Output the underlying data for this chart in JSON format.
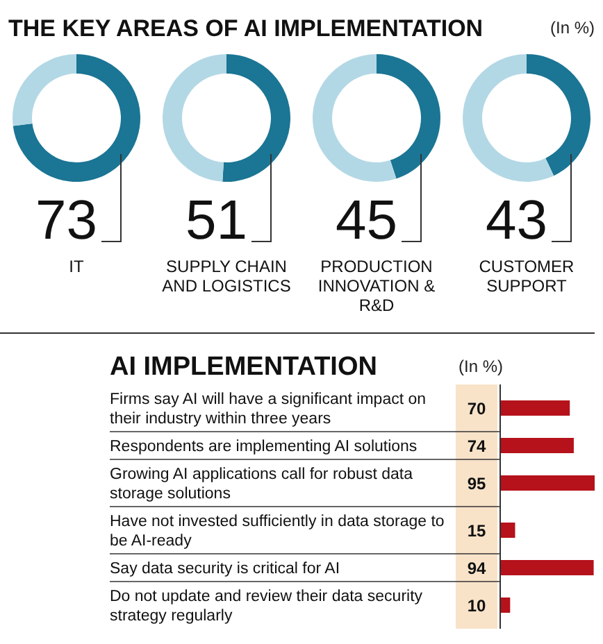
{
  "chart_data": [
    {
      "type": "donut",
      "title": "THE KEY AREAS OF AI IMPLEMENTATION",
      "annotations": [
        "(In %)"
      ],
      "categories": [
        "IT",
        null
      ],
      "values": [
        73,
        27
      ],
      "colors": [
        "#1b7594",
        "#b3d8e5"
      ],
      "value_labels": [
        "73",
        null
      ]
    },
    {
      "type": "donut",
      "categories": [
        "SUPPLY CHAIN AND LOGISTICS",
        null
      ],
      "values": [
        51,
        49
      ],
      "colors": [
        "#1b7594",
        "#b3d8e5"
      ],
      "value_labels": [
        "51",
        null
      ]
    },
    {
      "type": "donut",
      "categories": [
        "PRODUCTION INNOVATION & R&D",
        null
      ],
      "values": [
        45,
        55
      ],
      "colors": [
        "#1b7594",
        "#b3d8e5"
      ],
      "value_labels": [
        "45",
        null
      ]
    },
    {
      "type": "donut",
      "categories": [
        "CUSTOMER SUPPORT",
        null
      ],
      "values": [
        43,
        57
      ],
      "colors": [
        "#1b7594",
        "#b3d8e5"
      ],
      "value_labels": [
        "43",
        null
      ]
    },
    {
      "type": "bar",
      "orientation": "horizontal",
      "title": "AI IMPLEMENTATION",
      "annotations": [
        "(In %)"
      ],
      "categories": [
        "Firms say AI will have a significant impact on their industry within three years",
        "Respondents are implementing AI solutions",
        "Growing AI applications call for robust data storage solutions",
        "Have not invested sufficiently in data storage to be AI-ready",
        "Say data security is critical for AI",
        "Do not update and review their data security strategy regularly"
      ],
      "values": [
        70,
        74,
        95,
        15,
        94,
        10
      ],
      "color": "#b5121b",
      "data_labels": true
    }
  ]
}
